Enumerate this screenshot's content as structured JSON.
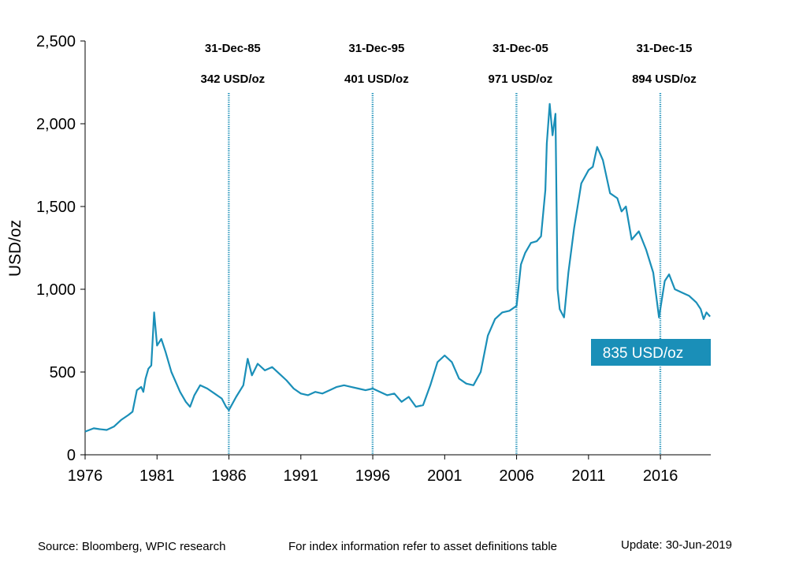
{
  "chart_data": {
    "type": "line",
    "ylabel": "USD/oz",
    "xlabel": "",
    "ylim": [
      0,
      2500
    ],
    "xlim": [
      1976.0,
      2019.5
    ],
    "yticks": [
      0,
      500,
      1000,
      1500,
      2000,
      2500
    ],
    "ytick_labels": [
      "0",
      "500",
      "1,000",
      "1,500",
      "2,000",
      "2,500"
    ],
    "xticks": [
      1976,
      1981,
      1986,
      1991,
      1996,
      2001,
      2006,
      2011,
      2016
    ],
    "xtick_labels": [
      "1976",
      "1981",
      "1986",
      "1991",
      "1996",
      "2001",
      "2006",
      "2011",
      "2016"
    ],
    "line_color": "#1a8fb8",
    "series": [
      {
        "name": "",
        "x": [
          1976.0,
          1976.3,
          1976.6,
          1977.0,
          1977.5,
          1978.0,
          1978.5,
          1979.0,
          1979.3,
          1979.6,
          1979.9,
          1980.05,
          1980.2,
          1980.4,
          1980.6,
          1980.8,
          1981.0,
          1981.3,
          1981.6,
          1982.0,
          1982.3,
          1982.6,
          1983.0,
          1983.3,
          1983.6,
          1984.0,
          1984.5,
          1985.0,
          1985.5,
          1985.8,
          1986.0,
          1986.5,
          1987.0,
          1987.3,
          1987.6,
          1988.0,
          1988.5,
          1989.0,
          1989.5,
          1990.0,
          1990.5,
          1991.0,
          1991.5,
          1992.0,
          1992.5,
          1993.0,
          1993.5,
          1994.0,
          1994.5,
          1995.0,
          1995.5,
          1996.0,
          1996.5,
          1997.0,
          1997.5,
          1998.0,
          1998.5,
          1999.0,
          1999.5,
          2000.0,
          2000.5,
          2001.0,
          2001.5,
          2002.0,
          2002.5,
          2003.0,
          2003.5,
          2004.0,
          2004.5,
          2005.0,
          2005.5,
          2006.0,
          2006.3,
          2006.6,
          2007.0,
          2007.4,
          2007.7,
          2008.0,
          2008.1,
          2008.3,
          2008.5,
          2008.7,
          2008.85,
          2009.0,
          2009.3,
          2009.6,
          2010.0,
          2010.5,
          2011.0,
          2011.3,
          2011.6,
          2012.0,
          2012.5,
          2013.0,
          2013.3,
          2013.6,
          2014.0,
          2014.5,
          2015.0,
          2015.5,
          2015.9,
          2016.3,
          2016.6,
          2017.0,
          2017.5,
          2018.0,
          2018.5,
          2018.8,
          2019.0,
          2019.2,
          2019.45
        ],
        "values": [
          140,
          150,
          160,
          155,
          150,
          170,
          210,
          240,
          260,
          390,
          410,
          380,
          460,
          520,
          540,
          860,
          660,
          700,
          620,
          500,
          440,
          380,
          320,
          290,
          360,
          420,
          400,
          370,
          340,
          290,
          270,
          350,
          420,
          580,
          480,
          550,
          510,
          530,
          490,
          450,
          400,
          370,
          360,
          380,
          370,
          390,
          410,
          420,
          410,
          400,
          390,
          400,
          380,
          360,
          370,
          320,
          350,
          290,
          300,
          420,
          560,
          600,
          560,
          460,
          430,
          420,
          500,
          720,
          820,
          860,
          870,
          900,
          1150,
          1220,
          1280,
          1290,
          1320,
          1600,
          1880,
          2120,
          1930,
          2060,
          1000,
          880,
          830,
          1100,
          1370,
          1640,
          1720,
          1740,
          1860,
          1780,
          1580,
          1550,
          1470,
          1500,
          1300,
          1350,
          1240,
          1100,
          830,
          1050,
          1090,
          1000,
          980,
          960,
          920,
          880,
          820,
          860,
          835
        ]
      }
    ],
    "annotations": [
      {
        "x": 1985.99,
        "date": "31-Dec-85",
        "value_label": "342 USD/oz"
      },
      {
        "x": 1995.99,
        "date": "31-Dec-95",
        "value_label": "401 USD/oz"
      },
      {
        "x": 2005.99,
        "date": "31-Dec-05",
        "value_label": "971 USD/oz"
      },
      {
        "x": 2015.99,
        "date": "31-Dec-15",
        "value_label": "894 USD/oz"
      }
    ],
    "last_value_label": "835 USD/oz",
    "last_box_color": "#1a8fb8"
  },
  "footer": {
    "source": "Source: Bloomberg, WPIC research",
    "note": "For index information refer to asset definitions table",
    "update": "Update: 30-Jun-2019"
  }
}
